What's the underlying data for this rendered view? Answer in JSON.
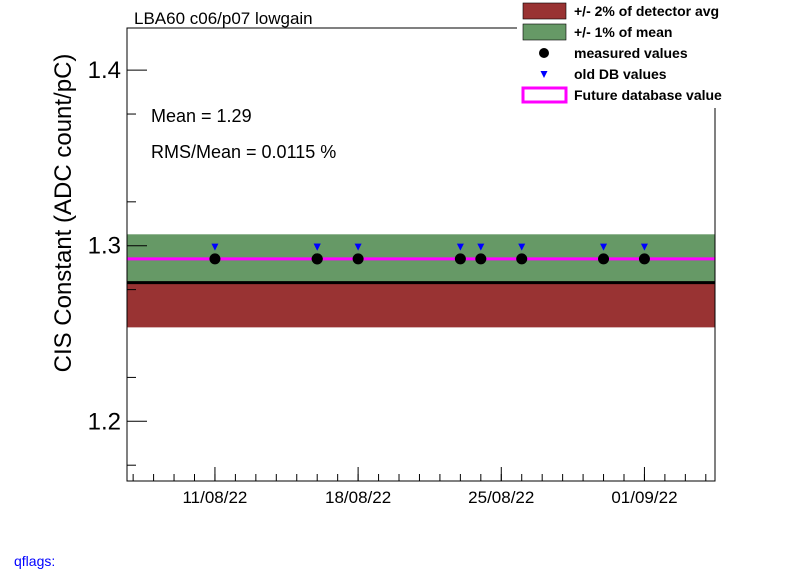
{
  "title": "LBA60 c06/p07 lowgain",
  "qflags_label": "qflags:",
  "stats": {
    "mean_text": "Mean = 1.29",
    "rms_text": "RMS/Mean = 0.0115 %"
  },
  "legend": [
    {
      "label": "+/- 2% of detector avg",
      "kind": "box",
      "color": "#993333"
    },
    {
      "label": "+/- 1% of mean",
      "kind": "box",
      "color": "#669966"
    },
    {
      "label": "measured values",
      "kind": "circle",
      "color": "#000000"
    },
    {
      "label": "old DB values",
      "kind": "triangle",
      "color": "#0000ff"
    },
    {
      "label": "Future database value",
      "kind": "line",
      "color": "#ff00ff"
    }
  ],
  "chart_data": {
    "type": "scatter",
    "title": "LBA60 c06/p07 lowgain",
    "xlabel": "",
    "ylabel": "CIS Constant (ADC count/pC)",
    "ylim": [
      1.166,
      1.424
    ],
    "xlim": [
      "2022-08-07",
      "2022-09-04"
    ],
    "xticks": [
      {
        "date": "2022-08-11",
        "label": "11/08/22"
      },
      {
        "date": "2022-08-18",
        "label": "18/08/22"
      },
      {
        "date": "2022-08-25",
        "label": "25/08/22"
      },
      {
        "date": "2022-09-01",
        "label": "01/09/22"
      }
    ],
    "yticks": [
      1.2,
      1.3,
      1.4
    ],
    "series": [
      {
        "name": "measured values",
        "x": [
          "2022-08-11",
          "2022-08-16",
          "2022-08-16",
          "2022-08-18",
          "2022-08-23",
          "2022-08-24",
          "2022-08-26",
          "2022-08-30",
          "2022-09-01"
        ],
        "y": [
          1.2925,
          1.2925,
          1.2925,
          1.2925,
          1.2925,
          1.2925,
          1.2925,
          1.2925,
          1.2925
        ]
      },
      {
        "name": "old DB values",
        "x": [
          "2022-08-11",
          "2022-08-16",
          "2022-08-16",
          "2022-08-18",
          "2022-08-23",
          "2022-08-24",
          "2022-08-26",
          "2022-08-30",
          "2022-09-01"
        ],
        "y": [
          1.2995,
          1.2995,
          1.2995,
          1.2995,
          1.2995,
          1.2995,
          1.2995,
          1.2995,
          1.2995
        ]
      }
    ],
    "bands": [
      {
        "name": "+/- 2% of detector avg",
        "low": 1.2535,
        "high": 1.279,
        "color": "#993333"
      },
      {
        "name": "+/- 1% of mean",
        "low": 1.279,
        "high": 1.3065,
        "color": "#669966"
      }
    ],
    "lines": [
      {
        "name": "detector avg",
        "y": 1.279,
        "color": "#000000"
      },
      {
        "name": "Future database value",
        "y": 1.2925,
        "color": "#ff00ff"
      }
    ]
  }
}
